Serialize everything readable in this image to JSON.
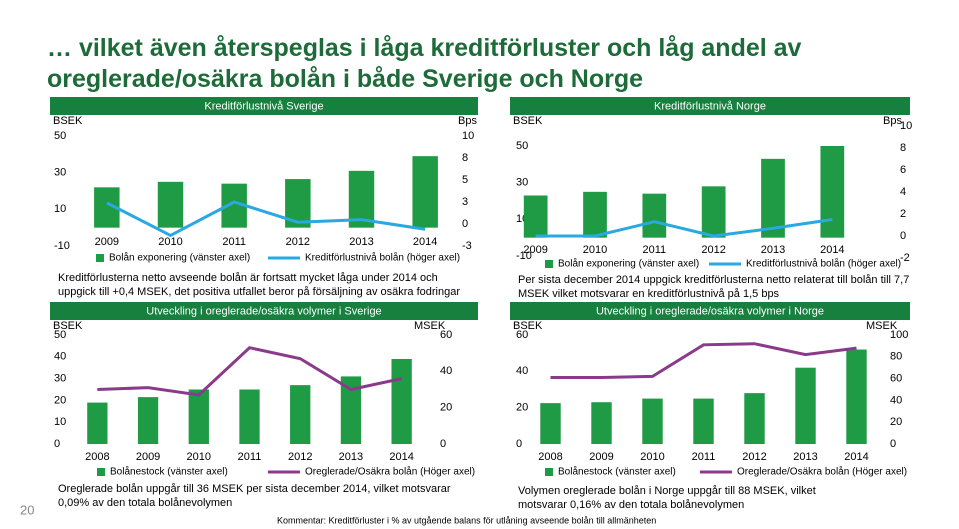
{
  "title": [
    "… vilket även återspeglas i låga kreditförluster och låg andel av",
    "oreglerade/osäkra bolån i både Sverige och Norge"
  ],
  "page_number": "20",
  "footnote": "Kommentar: Kreditförluster i % av utgående balans för utlåning avseende bolån till allmänheten",
  "chart_data": [
    {
      "type": "bar-line",
      "header": "Kreditförlustnivå Sverige",
      "y_unit": "BSEK",
      "y2_unit": "Bps",
      "categories": [
        "2009",
        "2010",
        "2011",
        "2012",
        "2013",
        "2014"
      ],
      "series": [
        {
          "name": "Bolån exponering (vänster axel)",
          "kind": "bar",
          "color": "#1f9a45",
          "values": [
            22,
            25,
            24,
            26.5,
            31,
            39
          ]
        },
        {
          "name": "Kreditförlustnivå bolån (höger axel)",
          "kind": "line",
          "axis": "y2",
          "color": "#2aa8e0",
          "values": [
            2.4,
            -1.3,
            2.5,
            0.2,
            0.5,
            -0.6
          ]
        }
      ],
      "ylim": [
        -10,
        50
      ],
      "yticks": [
        50,
        30,
        10,
        -10
      ],
      "y2lim": [
        -2.5,
        10
      ],
      "y2ticks": [
        10,
        {
          "value": 7.5,
          "label": "8"
        },
        5,
        {
          "value": 2.5,
          "label": "3"
        },
        0,
        {
          "value": -2.5,
          "label": "-3"
        }
      ],
      "description": [
        "Kreditförlusterna netto avseende bolån är fortsatt mycket låga under 2014 och",
        "uppgick till +0,4 MSEK, det positiva utfallet beror på försäljning av osäkra fodringar"
      ]
    },
    {
      "type": "bar-line",
      "header": "Utveckling i oreglerade/osäkra volymer i Sverige",
      "y_unit": "BSEK",
      "y2_unit": "MSEK",
      "categories": [
        "2008",
        "2009",
        "2010",
        "2011",
        "2012",
        "2013",
        "2014"
      ],
      "series": [
        {
          "name": "Bolånestock (vänster axel)",
          "kind": "bar",
          "color": "#1f9a45",
          "values": [
            19,
            21.5,
            25,
            25,
            27,
            31,
            39
          ]
        },
        {
          "name": "Oreglerade/Osäkra bolån (Höger axel)",
          "kind": "line",
          "axis": "y2",
          "color": "#8b3a8a",
          "values": [
            30,
            31,
            27,
            53,
            47,
            30,
            36
          ]
        }
      ],
      "ylim": [
        0,
        50
      ],
      "yticks": [
        50,
        40,
        30,
        20,
        10,
        0
      ],
      "y2lim": [
        0,
        60
      ],
      "y2ticks": [
        60,
        40,
        20,
        0
      ],
      "description": [
        "Oreglerade bolån uppgår till 36 MSEK per sista december 2014, vilket motsvarar",
        "0,09% av den totala bolånevolymen"
      ]
    },
    {
      "type": "bar-line",
      "header": "Kreditförlustnivå Norge",
      "y_unit": "BSEK",
      "y2_unit": "Bps",
      "categories": [
        "2009",
        "2010",
        "2011",
        "2012",
        "2013",
        "2014"
      ],
      "series": [
        {
          "name": "Bolån exponering (vänster axel)",
          "kind": "bar",
          "color": "#1f9a45",
          "values": [
            23,
            25,
            24,
            28,
            43,
            50
          ]
        },
        {
          "name": "Kreditförlustnivå bolån (höger axel)",
          "kind": "line",
          "axis": "y2",
          "color": "#2aa8e0",
          "values": [
            0,
            0,
            1.3,
            0,
            0.7,
            1.5
          ]
        }
      ],
      "ylim": [
        -10,
        50
      ],
      "yticks": [
        50,
        30,
        10,
        -10
      ],
      "y2lim": [
        -2,
        10
      ],
      "y2ticks": [
        10,
        8,
        6,
        4,
        2,
        0,
        -2
      ],
      "description": [
        "Per sista december 2014 uppgick kreditförlusterna netto relaterat till bolån till 7,7",
        "MSEK vilket motsvarar en kreditförlustnivå på 1,5 bps"
      ]
    },
    {
      "type": "bar-line",
      "header": "Utveckling i oreglerade/osäkra volymer i Norge",
      "y_unit": "BSEK",
      "y2_unit": "MSEK",
      "categories": [
        "2008",
        "2009",
        "2010",
        "2011",
        "2012",
        "2013",
        "2014"
      ],
      "series": [
        {
          "name": "Bolånestock (vänster axel)",
          "kind": "bar",
          "color": "#1f9a45",
          "values": [
            22.5,
            23,
            25,
            25,
            28,
            42,
            52
          ]
        },
        {
          "name": "Oreglerade/Osäkra bolån (Höger axel)",
          "kind": "line",
          "axis": "y2",
          "color": "#8b3a8a",
          "values": [
            61,
            61,
            62,
            91,
            92,
            82,
            88
          ]
        }
      ],
      "ylim": [
        0,
        60
      ],
      "yticks": [
        60,
        40,
        20,
        0
      ],
      "y2lim": [
        0,
        100
      ],
      "y2ticks": [
        100,
        80,
        60,
        40,
        20,
        0
      ],
      "description": [
        "Volymen oreglerade bolån i Norge uppgår till 88 MSEK, vilket",
        "motsvarar 0,16% av den totala bolånevolymen"
      ]
    }
  ]
}
